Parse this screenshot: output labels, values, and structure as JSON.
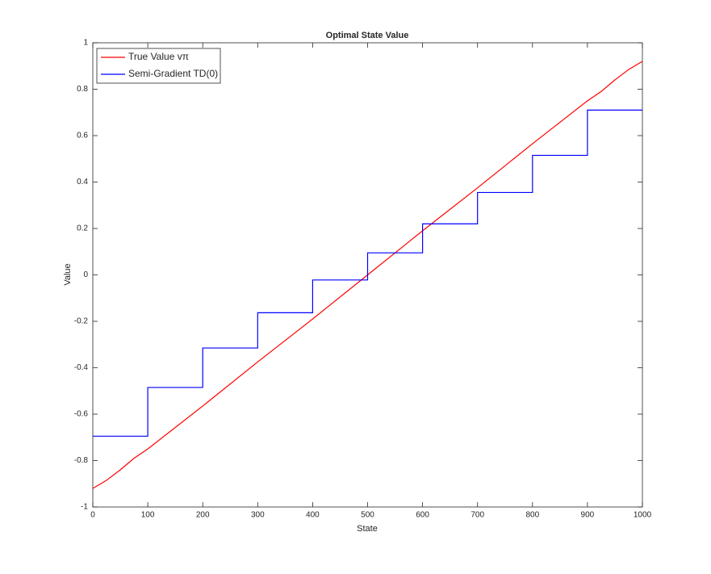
{
  "chart_data": {
    "type": "line",
    "title": "Optimal State Value",
    "x_label": "State",
    "y_label": "Value",
    "xlim": [
      0,
      1000
    ],
    "xticks": [
      0,
      100,
      200,
      300,
      400,
      500,
      600,
      700,
      800,
      900,
      1000
    ],
    "ylim": [
      -1,
      1
    ],
    "yticks": [
      -1,
      -0.8,
      -0.6,
      -0.4,
      -0.2,
      0,
      0.2,
      0.4,
      0.6,
      0.8,
      1
    ],
    "grid": false,
    "legend": "upper left",
    "series": [
      {
        "name": "True Value vπ",
        "color": "#ff0000",
        "x": [
          0,
          25,
          50,
          75,
          100,
          200,
          300,
          400,
          500,
          600,
          700,
          800,
          900,
          925,
          950,
          975,
          1000
        ],
        "values": [
          -0.92,
          -0.885,
          -0.84,
          -0.79,
          -0.75,
          -0.565,
          -0.375,
          -0.19,
          0.0,
          0.19,
          0.375,
          0.565,
          0.75,
          0.79,
          0.84,
          0.885,
          0.92
        ]
      },
      {
        "name": "Semi-Gradient TD(0)",
        "color": "#0000ff",
        "x": [
          0,
          100,
          100,
          200,
          200,
          300,
          300,
          400,
          400,
          500,
          500,
          600,
          600,
          700,
          700,
          800,
          800,
          900,
          900,
          1000
        ],
        "values": [
          -0.695,
          -0.695,
          -0.485,
          -0.485,
          -0.315,
          -0.315,
          -0.163,
          -0.163,
          -0.022,
          -0.022,
          0.095,
          0.095,
          0.22,
          0.22,
          0.355,
          0.355,
          0.515,
          0.515,
          0.71,
          0.71
        ]
      }
    ]
  }
}
